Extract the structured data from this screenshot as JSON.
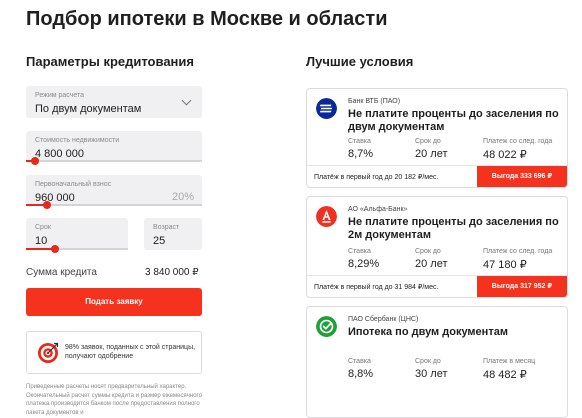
{
  "page": {
    "title": "Подбор ипотеки в Москве и области"
  },
  "params": {
    "title": "Параметры кредитования",
    "mode": {
      "label": "Режим расчета",
      "value": "По двум документам"
    },
    "price": {
      "label": "Стоимость недвижимости",
      "value": "4 800 000",
      "slider_fraction": 0.05
    },
    "down_payment": {
      "label": "Первоначальный взнос",
      "value": "960 000",
      "percent": "20%",
      "slider_fraction": 0.12
    },
    "term": {
      "label": "Срок",
      "value": "10",
      "slider_fraction": 0.28
    },
    "age": {
      "label": "Возраст",
      "value": "25"
    },
    "sum": {
      "label": "Сумма кредита",
      "value": "3 840 000 ₽"
    },
    "submit_label": "Подать заявку",
    "info_text": "98% заявок, поданных с этой страницы, получают одобрение",
    "disclaimer": "Приведенные расчеты носят предварительный характер. Окончательный расчет суммы кредита и размер ежемесячного платежа производится банком после предоставления полного пакета документов и"
  },
  "offers": {
    "title": "Лучшие условия",
    "items": [
      {
        "bank": "Банк ВТБ (ПАО)",
        "title": "Не платите проценты до заселения по двум документам",
        "rate_label": "Ставка",
        "rate": "8,7%",
        "term_label": "Срок до",
        "term": "20 лет",
        "payment_label": "Платеж со след. года",
        "payment": "48 022 ₽",
        "footer": "Платёж в первый год до 20 182 ₽/мес.",
        "benefit": "Выгода 333 696 ₽",
        "logo_icon": "vtb-logo-icon",
        "logo_color": "#0a2896"
      },
      {
        "bank": "АО «Альфа-Банк»",
        "title": "Не платите проценты до заселения по 2м документам",
        "rate_label": "Ставка",
        "rate": "8,29%",
        "term_label": "Срок до",
        "term": "20 лет",
        "payment_label": "Платеж со след. года",
        "payment": "47 180 ₽",
        "footer": "Платёж в первый год до 31 984 ₽/мес.",
        "benefit": "Выгода 317 952 ₽",
        "logo_icon": "alfa-logo-icon",
        "logo_color": "#ef3124"
      },
      {
        "bank": "ПАО Сбербанк (ЦНС)",
        "title": "Ипотека по двум документам",
        "rate_label": "Ставка",
        "rate": "8,8%",
        "term_label": "Срок до",
        "term": "30 лет",
        "payment_label": "Платеж в месяц",
        "payment": "48 482 ₽",
        "logo_icon": "sber-logo-icon",
        "logo_color": "#21a038"
      }
    ]
  },
  "colors": {
    "accent": "#f4321e",
    "field_bg": "#f0f0f3"
  }
}
